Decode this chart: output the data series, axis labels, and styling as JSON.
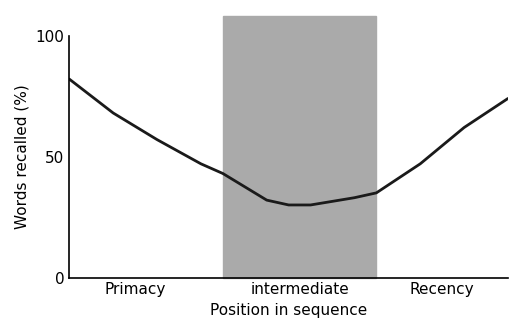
{
  "x": [
    0,
    1,
    2,
    3,
    3.5,
    4.5,
    5,
    5.5,
    6.5,
    7,
    8,
    9,
    10
  ],
  "y": [
    82,
    68,
    57,
    47,
    43,
    32,
    30,
    30,
    33,
    35,
    47,
    62,
    74
  ],
  "line_color": "#1a1a1a",
  "line_width": 2.0,
  "shading_x_start": 3.5,
  "shading_x_end": 7.0,
  "shading_color": "#aaaaaa",
  "xlabel": "Position in sequence",
  "ylabel": "Words recalled (%)",
  "ylim": [
    0,
    100
  ],
  "xlim": [
    0,
    10
  ],
  "xtick_positions": [
    1.5,
    5.25,
    8.5
  ],
  "xtick_labels": [
    "Primacy",
    "intermediate",
    "Recency"
  ],
  "ytick_positions": [
    0,
    50,
    100
  ],
  "ytick_labels": [
    "0",
    "50",
    "100"
  ],
  "background_color": "#ffffff",
  "xlabel_fontsize": 11,
  "ylabel_fontsize": 11,
  "tick_fontsize": 11,
  "spine_linewidth": 1.2
}
